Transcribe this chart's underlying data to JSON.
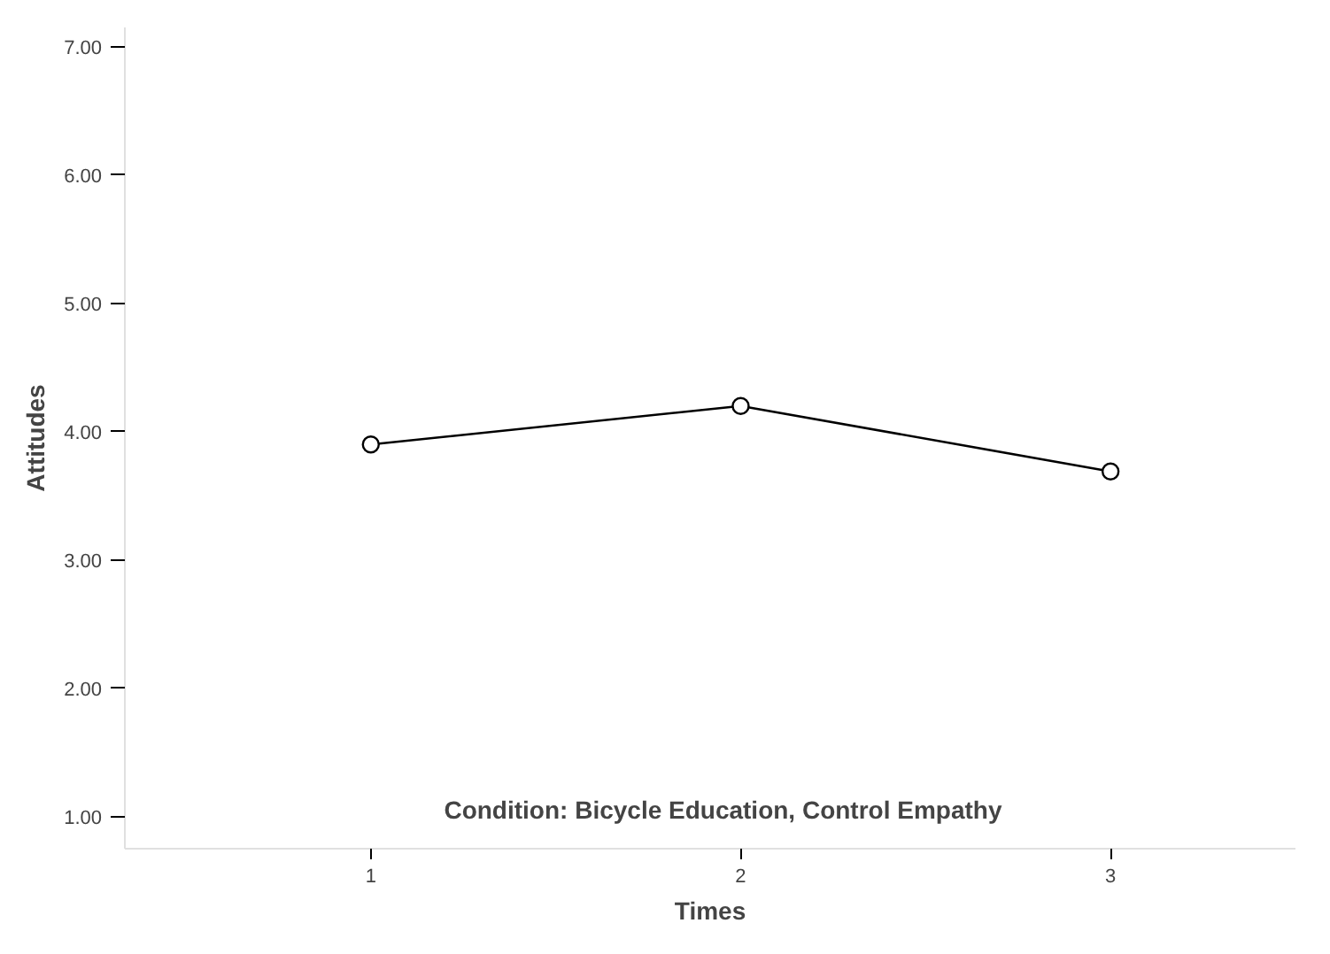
{
  "chart_data": {
    "type": "line",
    "xlabel": "Times",
    "ylabel": "Attitudes",
    "categories": [
      "1",
      "2",
      "3"
    ],
    "series": [
      {
        "color": "#000000",
        "values": [
          3.9,
          4.2,
          3.69
        ]
      }
    ],
    "ylim": [
      0.75,
      7.15
    ],
    "yticks": [
      {
        "value": 1,
        "label": "1.00"
      },
      {
        "value": 2,
        "label": "2.00"
      },
      {
        "value": 3,
        "label": "3.00"
      },
      {
        "value": 4,
        "label": "4.00"
      },
      {
        "value": 5,
        "label": "5.00"
      },
      {
        "value": 6,
        "label": "6.00"
      },
      {
        "value": 7,
        "label": "7.00"
      }
    ],
    "annotations": [
      "Condition: Bicycle Education, Control Empathy"
    ],
    "marker": "circle",
    "line_style": "solid"
  }
}
